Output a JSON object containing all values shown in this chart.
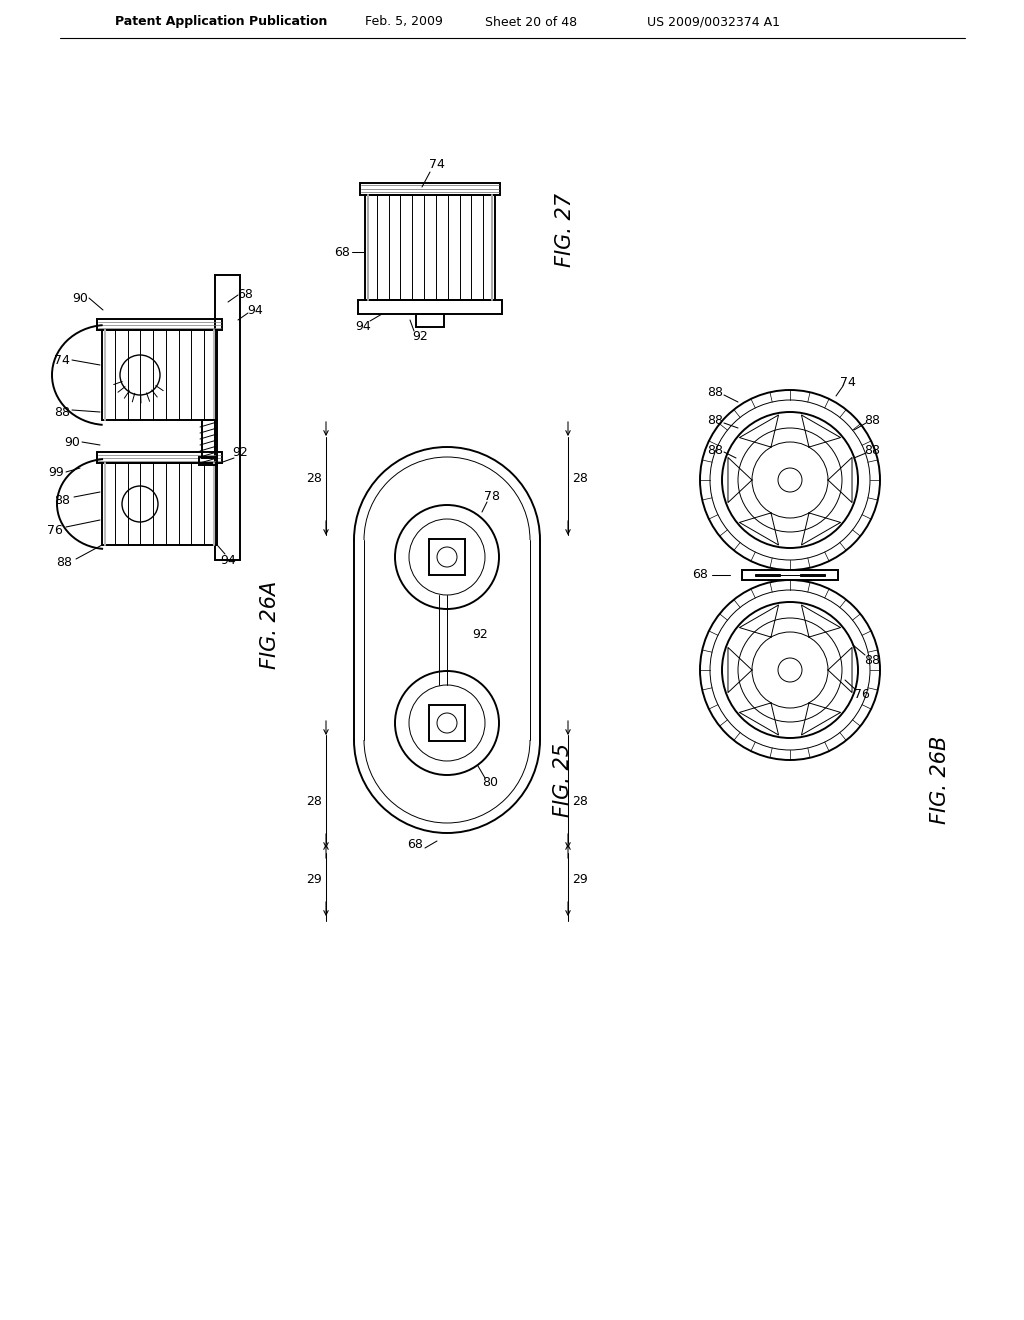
{
  "bg_color": "#ffffff",
  "header_text": "Patent Application Publication",
  "header_date": "Feb. 5, 2009",
  "header_sheet": "Sheet 20 of 48",
  "header_patent": "US 2009/0032374 A1",
  "fig27_label": "FIG. 27",
  "fig25_label": "FIG. 25",
  "fig26a_label": "FIG. 26A",
  "fig26b_label": "FIG. 26B",
  "lw_main": 1.4,
  "lw_thin": 0.7,
  "lw_med": 1.0,
  "lw_leader": 0.75
}
